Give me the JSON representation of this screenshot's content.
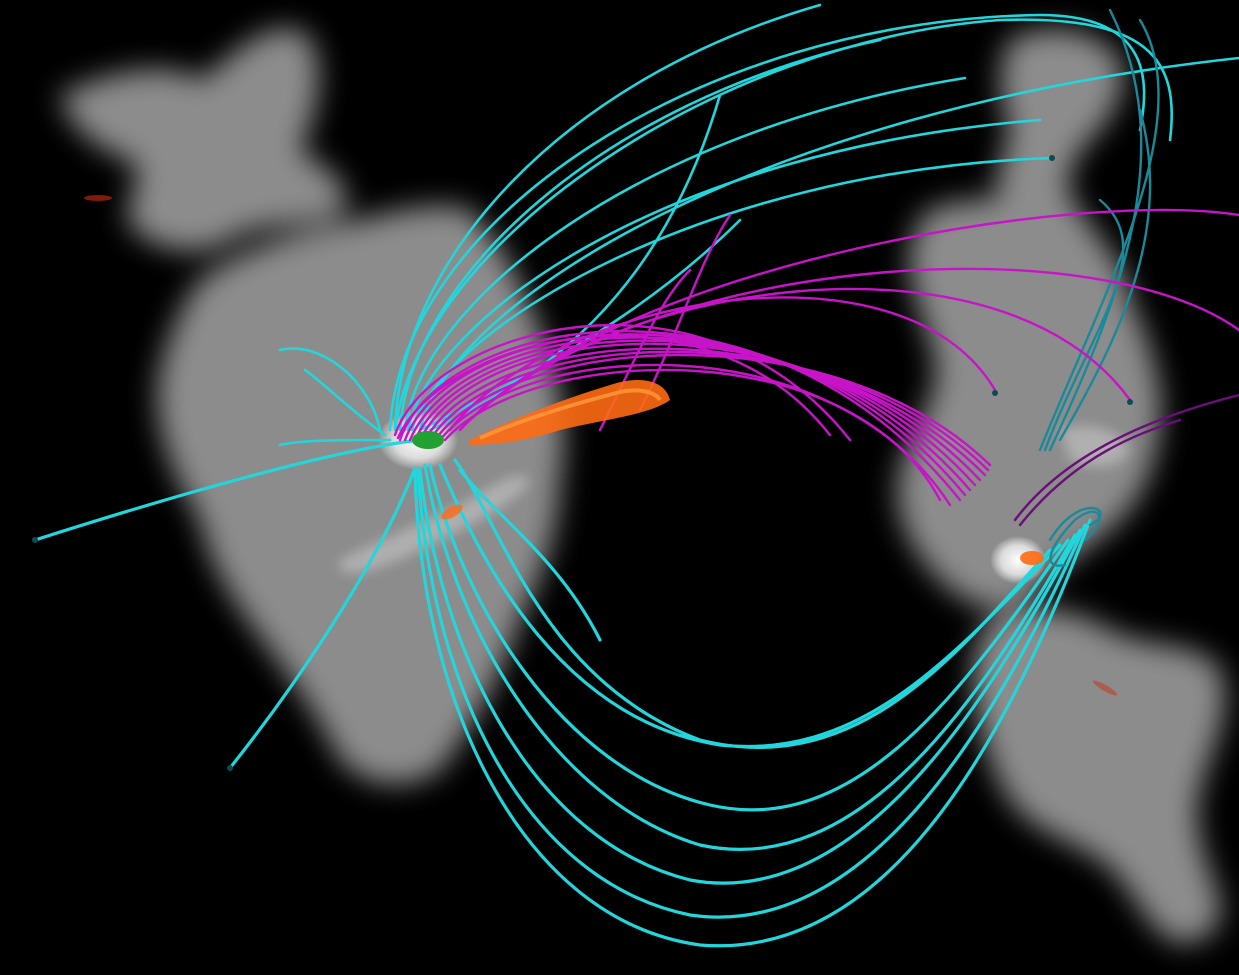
{
  "scene": {
    "background": "#000000",
    "patch_color": "#8a8a8a",
    "patch_highlight": "#d8d8d8",
    "footpoint_color": "#ffffff",
    "open_line_color": "#22d6dc",
    "closed_line_color": "#c814c8",
    "closed_line_dark": "#6a0e78",
    "current_color": "#ff6a14",
    "current_core": "#22a032"
  },
  "legend": {
    "open_lines": "cyan-tube-icon",
    "closed_lines": "magenta-tube-icon"
  }
}
